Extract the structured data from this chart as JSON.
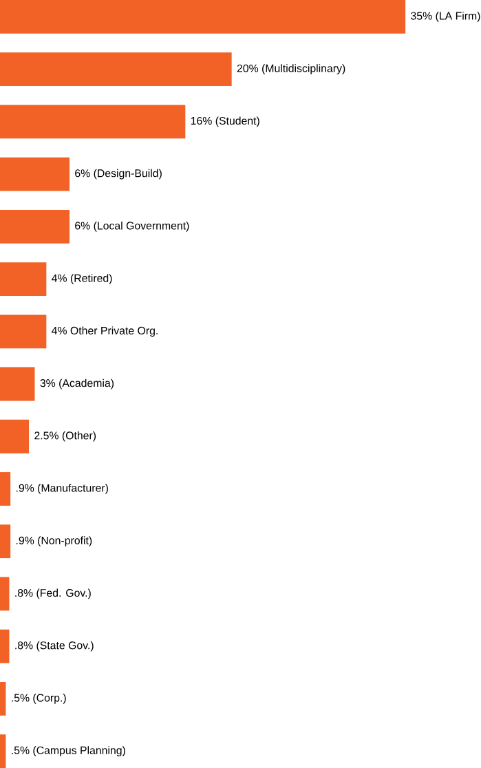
{
  "chart_data": {
    "type": "bar",
    "orientation": "horizontal",
    "color": "#f26125",
    "categories": [
      null,
      null,
      null,
      null,
      null,
      null,
      null,
      null,
      null,
      null,
      null,
      null,
      null,
      null,
      null
    ],
    "values": [
      35,
      20,
      16,
      6,
      6,
      4,
      4,
      3,
      2.5,
      0.9,
      0.9,
      0.8,
      0.8,
      0.5,
      0.5
    ],
    "value_labels": [
      "35% (LA Firm)",
      "20% (Multidisciplinary)",
      "16% (Student)",
      "6% (Design-Build)",
      "6% (Local Government)",
      "4% (Retired)",
      "4% Other Private Org.",
      "3% (Academia)",
      "2.5% (Other)",
      ".9% (Manufacturer)",
      ".9% (Non-profit)",
      ".8% (Fed. Gov.)",
      ".8% (State Gov.)",
      ".5% (Corp.)",
      ".5% (Campus Planning)"
    ]
  }
}
